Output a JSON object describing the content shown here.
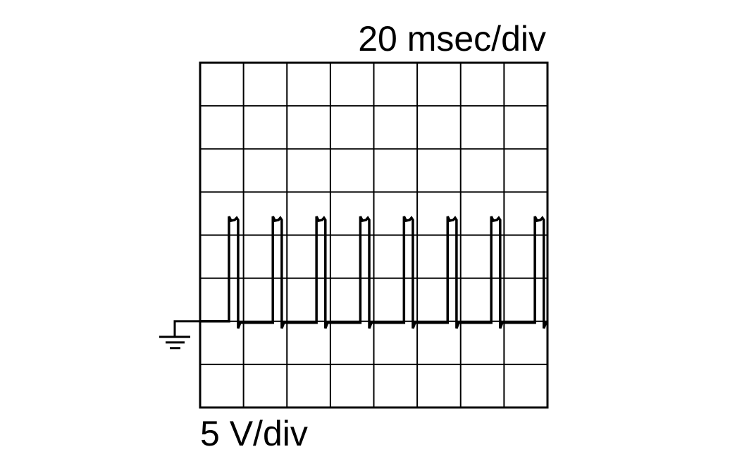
{
  "chart_data": {
    "type": "line",
    "title": "",
    "time_scale_label": "20 msec/div",
    "voltage_scale_label": "5 V/div",
    "x_unit": "ms",
    "y_unit": "V",
    "xlim": [
      0,
      160
    ],
    "ylim": [
      -10,
      30
    ],
    "x_divisions": 8,
    "y_divisions": 8,
    "grid": true,
    "ground_reference_V": 0,
    "low_level_V": 0,
    "high_level_V": 12,
    "pulses": [
      {
        "rise_ms": 13.3,
        "fall_ms": 17.5
      },
      {
        "rise_ms": 33.5,
        "fall_ms": 37.6
      },
      {
        "rise_ms": 53.6,
        "fall_ms": 57.7
      },
      {
        "rise_ms": 73.8,
        "fall_ms": 77.9
      },
      {
        "rise_ms": 93.9,
        "fall_ms": 98.0
      },
      {
        "rise_ms": 114.0,
        "fall_ms": 118.1
      },
      {
        "rise_ms": 134.1,
        "fall_ms": 138.2
      },
      {
        "rise_ms": 154.2,
        "fall_ms": 158.3
      }
    ],
    "trace_color": "#000000"
  }
}
